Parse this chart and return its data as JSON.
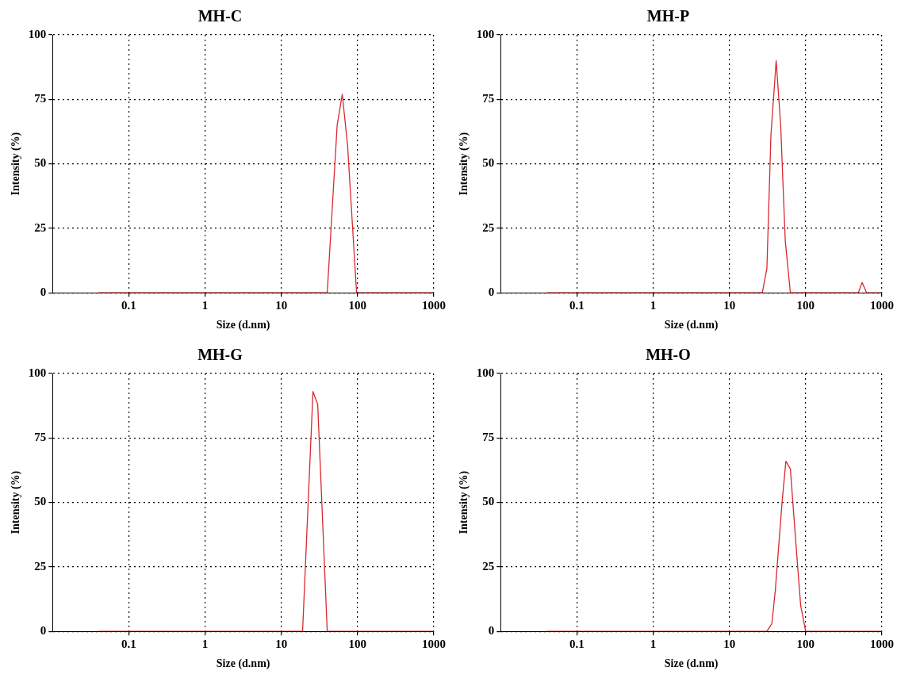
{
  "chart_data": [
    {
      "type": "line",
      "title": "MH-C",
      "xlabel": "Size (d.nm)",
      "ylabel": "Intensity (%)",
      "log": "x",
      "grid": true,
      "marker": "none",
      "xlim": [
        0.01,
        1000
      ],
      "xticks": [
        0.1,
        1,
        10,
        100,
        1000
      ],
      "ylim": [
        0,
        100
      ],
      "yticks": [
        0,
        25,
        50,
        75,
        100
      ],
      "series": [
        {
          "color": "#d9282f",
          "x": [
            0.04,
            40,
            54,
            63,
            74,
            97,
            1000
          ],
          "values": [
            0,
            0,
            65,
            77,
            57,
            0,
            0
          ]
        }
      ]
    },
    {
      "type": "line",
      "title": "MH-P",
      "xlabel": "Size (d.nm)",
      "ylabel": "Intensity (%)",
      "log": "x",
      "grid": true,
      "marker": "none",
      "xlim": [
        0.01,
        1000
      ],
      "xticks": [
        0.1,
        1,
        10,
        100,
        1000
      ],
      "ylim": [
        0,
        100
      ],
      "yticks": [
        0,
        25,
        50,
        75,
        100
      ],
      "series": [
        {
          "color": "#d9282f",
          "x": [
            0.04,
            27,
            31,
            35,
            41,
            47,
            54,
            63,
            490,
            550,
            630,
            1000
          ],
          "values": [
            0,
            0,
            9.5,
            61,
            90,
            65,
            20,
            0,
            0,
            4,
            0,
            0
          ]
        }
      ]
    },
    {
      "type": "line",
      "title": "MH-G",
      "xlabel": "Size (d.nm)",
      "ylabel": "Intensity (%)",
      "log": "x",
      "grid": true,
      "marker": "none",
      "xlim": [
        0.01,
        1000
      ],
      "xticks": [
        0.1,
        1,
        10,
        100,
        1000
      ],
      "ylim": [
        0,
        100
      ],
      "yticks": [
        0,
        25,
        50,
        75,
        100
      ],
      "series": [
        {
          "color": "#d9282f",
          "x": [
            0.04,
            19,
            26,
            30,
            40,
            1000
          ],
          "values": [
            0,
            0,
            93,
            88,
            0,
            0
          ]
        }
      ]
    },
    {
      "type": "line",
      "title": "MH-O",
      "xlabel": "Size (d.nm)",
      "ylabel": "Intensity (%)",
      "log": "x",
      "grid": true,
      "marker": "none",
      "xlim": [
        0.01,
        1000
      ],
      "xticks": [
        0.1,
        1,
        10,
        100,
        1000
      ],
      "ylim": [
        0,
        100
      ],
      "yticks": [
        0,
        25,
        50,
        75,
        100
      ],
      "series": [
        {
          "color": "#d9282f",
          "x": [
            0.04,
            31,
            36,
            40,
            49,
            55,
            63,
            74,
            86,
            100,
            1000
          ],
          "values": [
            0,
            0,
            3,
            16,
            50,
            66,
            63,
            35,
            10,
            0,
            0
          ]
        }
      ]
    }
  ]
}
